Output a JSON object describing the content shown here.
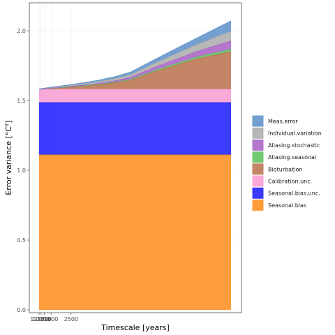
{
  "chart_data": {
    "type": "area",
    "stacked": true,
    "xlabel": "Timescale [years]",
    "ylabel": "Error variance [°C",
    "ylabel_sup": "2",
    "ylabel_close": "]",
    "x_ticks": [
      {
        "value": 12500,
        "label": "12500"
      },
      {
        "value": 10000,
        "label": "10000"
      },
      {
        "value": 7500,
        "label": "7500"
      },
      {
        "value": 5000,
        "label": "5000"
      },
      {
        "value": 2500,
        "label": "2500"
      }
    ],
    "y_ticks": [
      "0.0",
      "0.5",
      "1.0",
      "1.5",
      "2.0"
    ],
    "ylim": [
      -0.02,
      2.2
    ],
    "x": [
      12500,
      11000,
      9000,
      7000,
      5000,
      4000,
      3000,
      2500,
      2000,
      1500,
      1200,
      1000,
      800,
      600,
      500
    ],
    "series": [
      {
        "name": "Seasonal.bias",
        "color": "#FF8C1A",
        "values": [
          1.11,
          1.11,
          1.11,
          1.11,
          1.11,
          1.11,
          1.11,
          1.11,
          1.11,
          1.11,
          1.11,
          1.11,
          1.11,
          1.11,
          1.11
        ]
      },
      {
        "name": "Seasonal.bias.unc.",
        "color": "#1A1AFF",
        "values": [
          0.375,
          0.375,
          0.375,
          0.375,
          0.375,
          0.375,
          0.375,
          0.375,
          0.375,
          0.375,
          0.375,
          0.375,
          0.375,
          0.375,
          0.375
        ]
      },
      {
        "name": "Calibration.unc.",
        "color": "#F99BD2",
        "values": [
          0.095,
          0.095,
          0.095,
          0.095,
          0.095,
          0.095,
          0.095,
          0.095,
          0.095,
          0.095,
          0.095,
          0.095,
          0.095,
          0.095,
          0.095
        ]
      },
      {
        "name": "Bioturbation",
        "color": "#B9704A",
        "values": [
          0.0,
          0.001,
          0.002,
          0.003,
          0.006,
          0.008,
          0.012,
          0.015,
          0.02,
          0.03,
          0.045,
          0.065,
          0.13,
          0.22,
          0.27
        ]
      },
      {
        "name": "Aliasing.seasonal",
        "color": "#5CBF5C",
        "values": [
          0.0,
          0.0,
          0.0,
          0.0,
          0.001,
          0.001,
          0.002,
          0.002,
          0.003,
          0.004,
          0.005,
          0.006,
          0.009,
          0.013,
          0.016
        ]
      },
      {
        "name": "Aliasing.stochastic",
        "color": "#A85FC4",
        "values": [
          0.0,
          0.0,
          0.001,
          0.001,
          0.002,
          0.002,
          0.003,
          0.004,
          0.005,
          0.007,
          0.01,
          0.015,
          0.022,
          0.04,
          0.06
        ]
      },
      {
        "name": "Individual.variation",
        "color": "#AAAAAA",
        "values": [
          0.001,
          0.002,
          0.002,
          0.003,
          0.004,
          0.005,
          0.006,
          0.007,
          0.009,
          0.012,
          0.016,
          0.02,
          0.03,
          0.05,
          0.07
        ]
      },
      {
        "name": "Meas.error",
        "color": "#5A8FC8",
        "values": [
          0.001,
          0.001,
          0.002,
          0.002,
          0.003,
          0.004,
          0.005,
          0.006,
          0.008,
          0.011,
          0.014,
          0.019,
          0.028,
          0.048,
          0.075
        ]
      }
    ],
    "legend_position": "right",
    "legend_order": [
      "Meas.error",
      "Individual.variation",
      "Aliasing.stochastic",
      "Aliasing.seasonal",
      "Bioturbation",
      "Calibration.unc.",
      "Seasonal.bias.unc.",
      "Seasonal.bias"
    ],
    "grid": true
  }
}
